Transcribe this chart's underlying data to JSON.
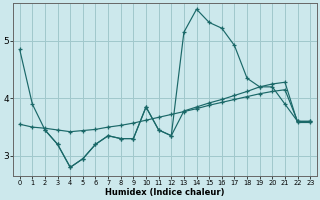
{
  "xlabel": "Humidex (Indice chaleur)",
  "background_color": "#cce8ec",
  "grid_color": "#a0c8cc",
  "line_color": "#1a6868",
  "xlim": [
    -0.5,
    23.5
  ],
  "ylim": [
    2.65,
    5.65
  ],
  "yticks": [
    3,
    4,
    5
  ],
  "xticks": [
    0,
    1,
    2,
    3,
    4,
    5,
    6,
    7,
    8,
    9,
    10,
    11,
    12,
    13,
    14,
    15,
    16,
    17,
    18,
    19,
    20,
    21,
    22,
    23
  ],
  "line1_x": [
    0,
    1,
    2,
    3,
    4,
    5,
    6,
    7,
    8,
    9,
    10,
    11,
    12,
    13,
    14,
    15,
    16,
    17,
    18,
    19,
    20,
    21,
    22,
    23
  ],
  "line1_y": [
    4.85,
    3.9,
    3.45,
    3.2,
    2.8,
    2.95,
    3.2,
    3.35,
    3.3,
    3.3,
    3.85,
    3.45,
    3.35,
    5.15,
    5.55,
    5.32,
    5.22,
    4.92,
    4.35,
    4.2,
    4.2,
    3.9,
    3.6,
    3.6
  ],
  "line2_x": [
    0,
    1,
    2,
    3,
    4,
    5,
    6,
    7,
    8,
    9,
    10,
    11,
    12,
    13,
    14,
    15,
    16,
    17,
    18,
    19,
    20,
    21,
    22,
    23
  ],
  "line2_y": [
    3.55,
    3.5,
    3.48,
    3.45,
    3.42,
    3.44,
    3.46,
    3.5,
    3.53,
    3.57,
    3.62,
    3.67,
    3.72,
    3.77,
    3.82,
    3.88,
    3.93,
    3.98,
    4.03,
    4.08,
    4.12,
    4.15,
    3.6,
    3.6
  ],
  "line3_x": [
    2,
    3,
    4,
    5,
    6,
    7,
    8,
    9,
    10,
    11,
    12,
    13,
    14,
    15,
    16,
    17,
    18,
    19,
    20,
    21,
    22,
    23
  ],
  "line3_y": [
    3.45,
    3.2,
    2.8,
    2.95,
    3.2,
    3.35,
    3.3,
    3.3,
    3.85,
    3.45,
    3.35,
    3.78,
    3.85,
    3.92,
    3.98,
    4.05,
    4.12,
    4.2,
    4.25,
    4.28,
    3.58,
    3.58
  ]
}
